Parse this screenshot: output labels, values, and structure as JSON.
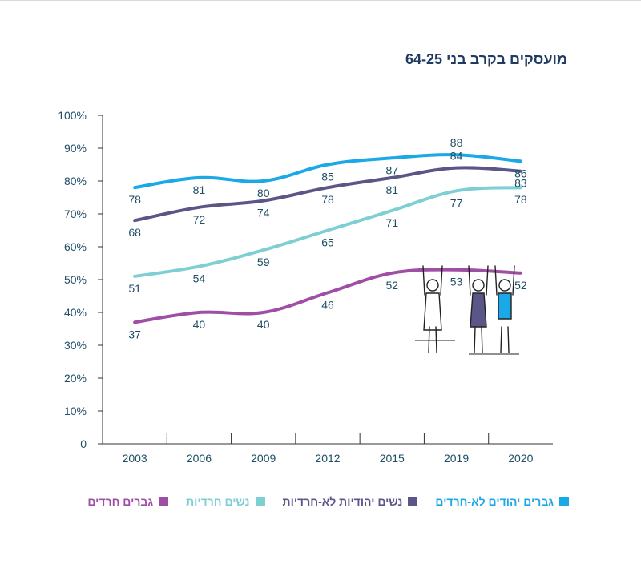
{
  "chart_data": {
    "type": "line",
    "title": "מועסקים בקרב בני 64-25",
    "categories": [
      "2003",
      "2006",
      "2009",
      "2012",
      "2015",
      "2019",
      "2020"
    ],
    "y_ticks": [
      "0",
      "10%",
      "20%",
      "30%",
      "40%",
      "50%",
      "60%",
      "70%",
      "80%",
      "90%",
      "100%"
    ],
    "ylim": [
      0,
      100
    ],
    "grid": false,
    "legend_position": "bottom",
    "series": [
      {
        "name": "גברים יהודים לא-חרדים",
        "color": "#1aa8e6",
        "values": [
          78,
          81,
          80,
          85,
          87,
          88,
          86
        ]
      },
      {
        "name": "נשים יהודיות לא-חרדיות",
        "color": "#5b5688",
        "values": [
          68,
          72,
          74,
          78,
          81,
          84,
          83
        ]
      },
      {
        "name": "נשים חרדיות",
        "color": "#7ecfd4",
        "values": [
          51,
          54,
          59,
          65,
          71,
          77,
          78
        ]
      },
      {
        "name": "גברים חרדים",
        "color": "#9e4fa5",
        "values": [
          37,
          40,
          40,
          46,
          52,
          53,
          52
        ]
      }
    ],
    "label_color": "#1f4e66",
    "axis_color": "#333333"
  }
}
